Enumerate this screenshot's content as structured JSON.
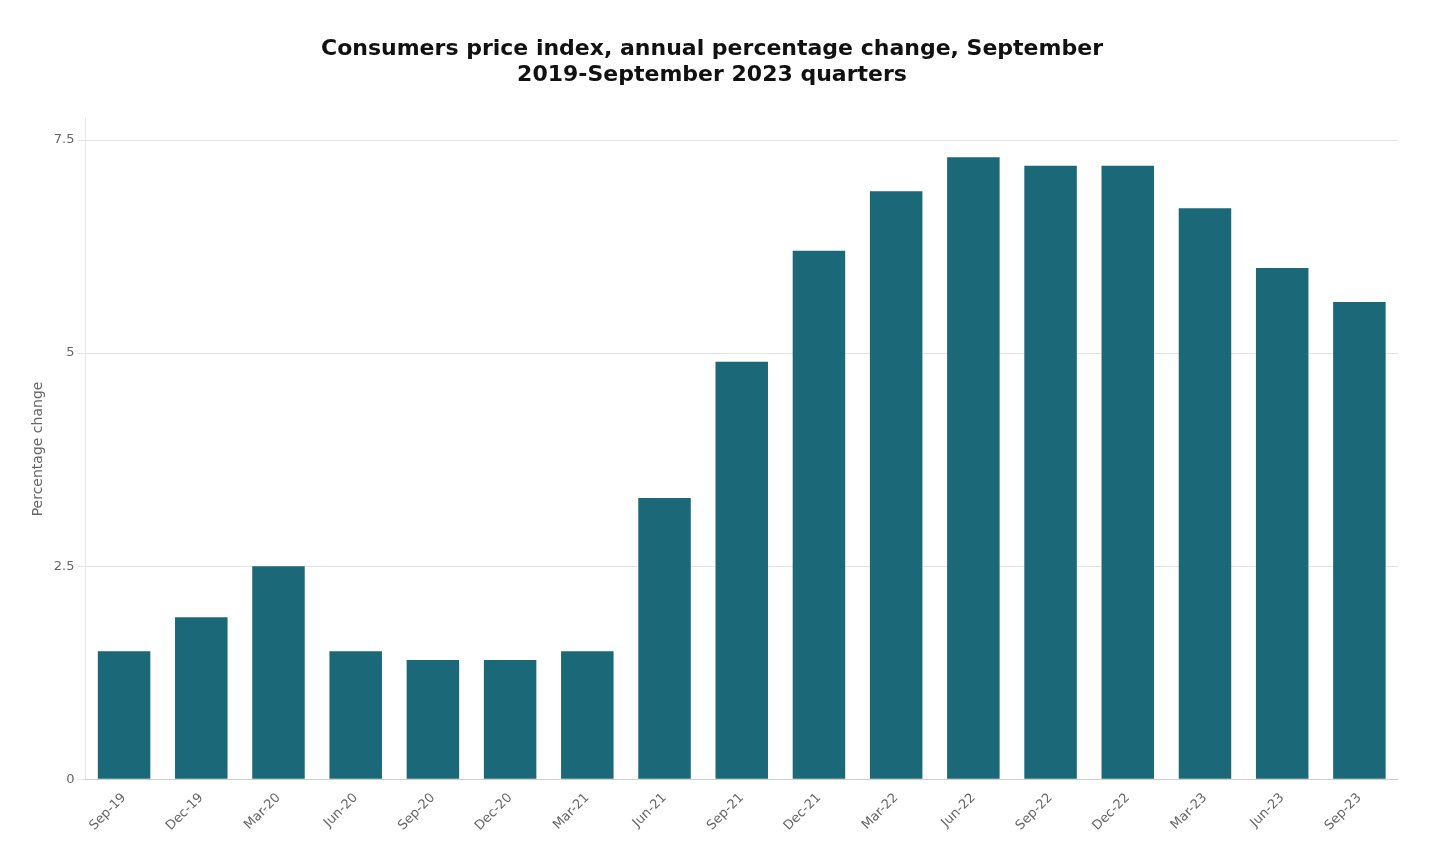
{
  "chart_data": {
    "type": "bar",
    "title": "Consumers price index, annual percentage change, September\n2019-September 2023 quarters",
    "ylabel": "Percentage change",
    "categories": [
      "Sep-19",
      "Dec-19",
      "Mar-20",
      "Jun-20",
      "Sep-20",
      "Dec-20",
      "Mar-21",
      "Jun-21",
      "Sep-21",
      "Dec-21",
      "Mar-22",
      "Jun-22",
      "Sep-22",
      "Dec-22",
      "Mar-23",
      "Jun-23",
      "Sep-23"
    ],
    "values": [
      1.5,
      1.9,
      2.5,
      1.5,
      1.4,
      1.4,
      1.5,
      3.3,
      4.9,
      6.2,
      6.9,
      7.3,
      7.2,
      7.2,
      6.7,
      6.0,
      5.6
    ],
    "color": "#1a6878",
    "ylim": [
      0,
      7.75
    ],
    "yticks": [
      0,
      2.5,
      5,
      7.5
    ],
    "grid": true
  }
}
